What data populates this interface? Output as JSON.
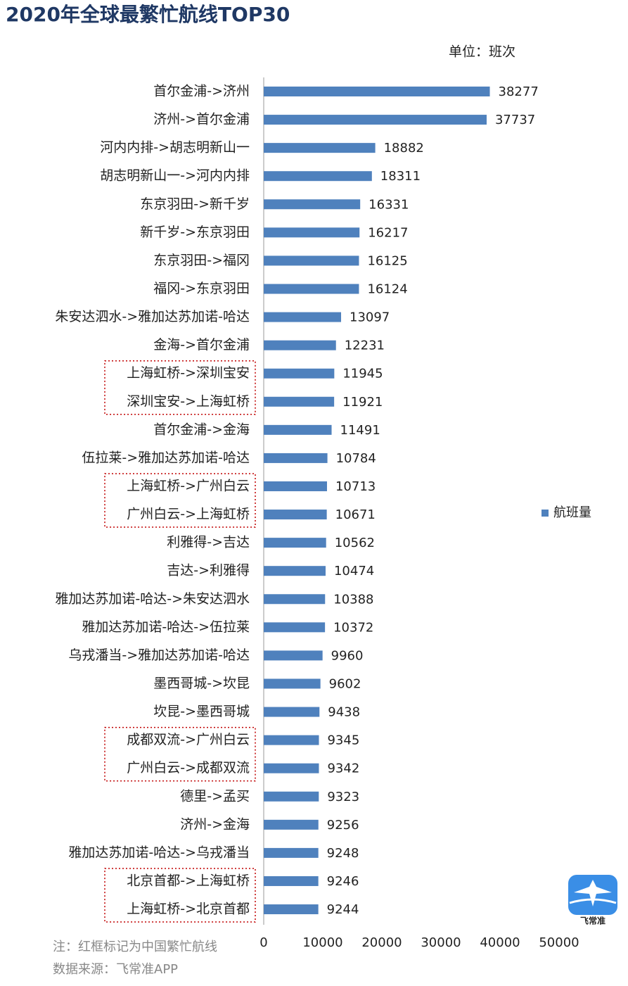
{
  "chart_data": {
    "type": "bar",
    "orientation": "horizontal",
    "title": "2020年全球最繁忙航线TOP30",
    "unit_label": "单位：班次",
    "categories": [
      "首尔金浦->济州",
      "济州->首尔金浦",
      "河内内排->胡志明新山一",
      "胡志明新山一->河内内排",
      "东京羽田->新千岁",
      "新千岁->东京羽田",
      "东京羽田->福冈",
      "福冈->东京羽田",
      "朱安达泗水->雅加达苏加诺-哈达",
      "金海->首尔金浦",
      "上海虹桥->深圳宝安",
      "深圳宝安->上海虹桥",
      "首尔金浦->金海",
      "伍拉莱->雅加达苏加诺-哈达",
      "上海虹桥->广州白云",
      "广州白云->上海虹桥",
      "利雅得->吉达",
      "吉达->利雅得",
      "雅加达苏加诺-哈达->朱安达泗水",
      "雅加达苏加诺-哈达->伍拉莱",
      "乌戎潘当->雅加达苏加诺-哈达",
      "墨西哥城->坎昆",
      "坎昆->墨西哥城",
      "成都双流->广州白云",
      "广州白云->成都双流",
      "德里->孟买",
      "济州->金海",
      "雅加达苏加诺-哈达->乌戎潘当",
      "北京首都->上海虹桥",
      "上海虹桥->北京首都"
    ],
    "series": [
      {
        "name": "航班量",
        "color": "#4f81bd",
        "values": [
          38277,
          37737,
          18882,
          18311,
          16331,
          16217,
          16125,
          16124,
          13097,
          12231,
          11945,
          11921,
          11491,
          10784,
          10713,
          10671,
          10562,
          10474,
          10388,
          10372,
          9960,
          9602,
          9438,
          9345,
          9342,
          9323,
          9256,
          9248,
          9246,
          9244
        ]
      }
    ],
    "xlim": [
      0,
      50000
    ],
    "xticks": [
      0,
      10000,
      20000,
      30000,
      40000,
      50000
    ],
    "legend": "right",
    "highlight_rows": [
      [
        10,
        11
      ],
      [
        14,
        15
      ],
      [
        23,
        24
      ],
      [
        28,
        29
      ]
    ],
    "highlight_color": "#c00000",
    "notes": [
      "注：红框标记为中国繁忙航线",
      "数据来源：飞常准APP"
    ],
    "logo_text": "飞常准"
  }
}
